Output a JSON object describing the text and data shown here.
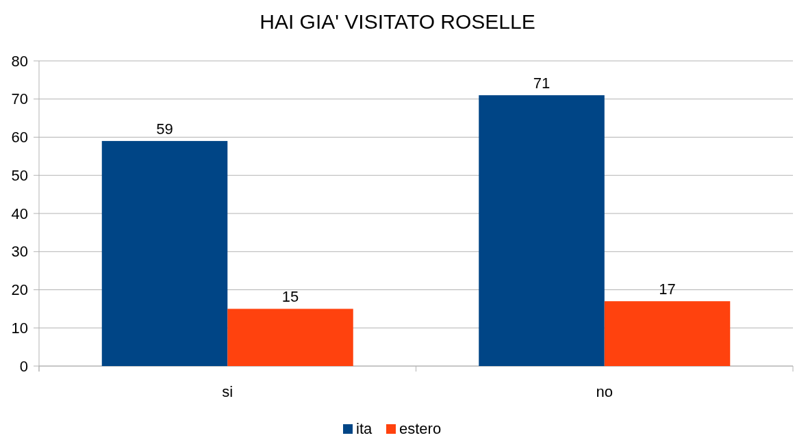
{
  "chart_data": {
    "type": "bar",
    "title": "HAI GIA' VISITATO ROSELLE",
    "categories": [
      "si",
      "no"
    ],
    "series": [
      {
        "name": "ita",
        "color": "#004586",
        "values": [
          59,
          71
        ]
      },
      {
        "name": "estero",
        "color": "#ff420e",
        "values": [
          15,
          17
        ]
      }
    ],
    "ylim": [
      0,
      80
    ],
    "yticks": [
      0,
      10,
      20,
      30,
      40,
      50,
      60,
      70,
      80
    ],
    "grid": "y",
    "legend": "bottom",
    "data_labels": true
  }
}
